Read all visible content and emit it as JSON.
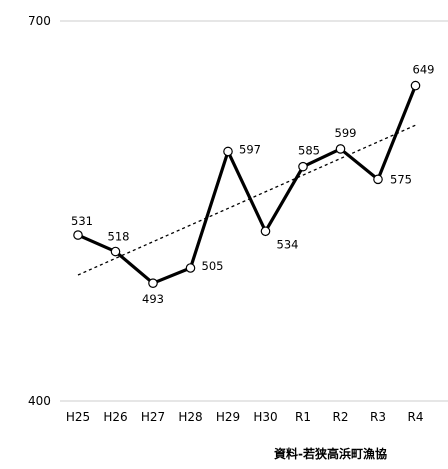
{
  "chart_data": {
    "type": "line",
    "categories": [
      "H25",
      "H26",
      "H27",
      "H28",
      "H29",
      "H30",
      "R1",
      "R2",
      "R3",
      "R4"
    ],
    "series": [
      {
        "values": [
          531,
          518,
          493,
          505,
          597,
          534,
          585,
          599,
          575,
          649
        ]
      }
    ],
    "trendline": {
      "style": "dashed",
      "kind": "linear"
    },
    "ylim": [
      400,
      700
    ],
    "yticks": [
      400,
      700
    ],
    "grid": true,
    "line_color": "#000000",
    "grid_color": "#cccccc"
  },
  "source": "資料-若狭高浜町漁協"
}
